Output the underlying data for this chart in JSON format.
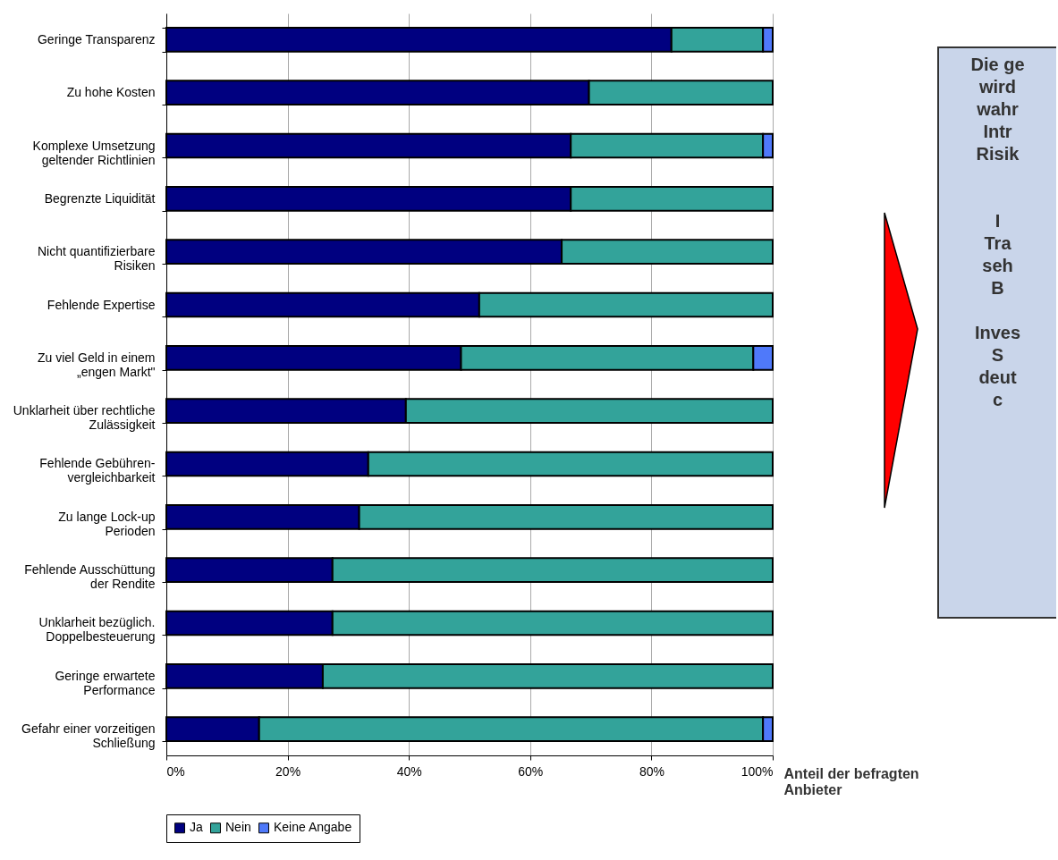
{
  "chart_data": {
    "type": "bar",
    "orientation": "horizontal",
    "stacked": true,
    "categories": [
      "Geringe Transparenz",
      "Zu hohe Kosten",
      "Komplexe Umsetzung\ngeltender Richtlinien",
      "Begrenzte Liquidität",
      "Nicht quantifizierbare\nRisiken",
      "Fehlende Expertise",
      "Zu viel Geld in einem\n„engen Markt\"",
      "Unklarheit über rechtliche\nZulässigkeit",
      "Fehlende Gebühren-\nvergleichbarkeit",
      "Zu lange Lock-up\nPerioden",
      "Fehlende Ausschüttung\nder Rendite",
      "Unklarheit bezüglich.\nDoppelbesteuerung",
      "Geringe erwartete\nPerformance",
      "Gefahr einer vorzeitigen\nSchließung"
    ],
    "series": [
      {
        "name": "Ja",
        "color": "#000080",
        "values": [
          83.3,
          69.7,
          66.7,
          66.7,
          65.2,
          51.6,
          48.6,
          39.5,
          33.3,
          31.8,
          27.4,
          27.4,
          25.8,
          15.3
        ]
      },
      {
        "name": "Nein",
        "color": "#33a39a",
        "values": [
          15.1,
          30.3,
          31.7,
          33.3,
          34.8,
          48.4,
          48.2,
          60.5,
          66.7,
          68.2,
          72.6,
          72.6,
          74.2,
          83.1
        ]
      },
      {
        "name": "Keine Angabe",
        "color": "#4f79fa",
        "values": [
          1.6,
          null,
          1.6,
          null,
          null,
          null,
          3.2,
          null,
          null,
          null,
          null,
          null,
          null,
          1.6
        ]
      }
    ],
    "xlim": [
      0,
      100
    ],
    "xticks": [
      {
        "value": 0,
        "label": "0%"
      },
      {
        "value": 20,
        "label": "20%"
      },
      {
        "value": 40,
        "label": "40%"
      },
      {
        "value": 60,
        "label": "60%"
      },
      {
        "value": 80,
        "label": "80%"
      },
      {
        "value": 100,
        "label": "100%"
      }
    ],
    "xlabel": "Anteil der befragten\nAnbieter",
    "grid": "x",
    "legend": "bottom",
    "annotations": [
      "Die ge\nwird\nwahr\nIntr\nRisik\n\n\nI\nTra\nseh\nB\n\nInves\nS\ndeut\nc"
    ]
  }
}
